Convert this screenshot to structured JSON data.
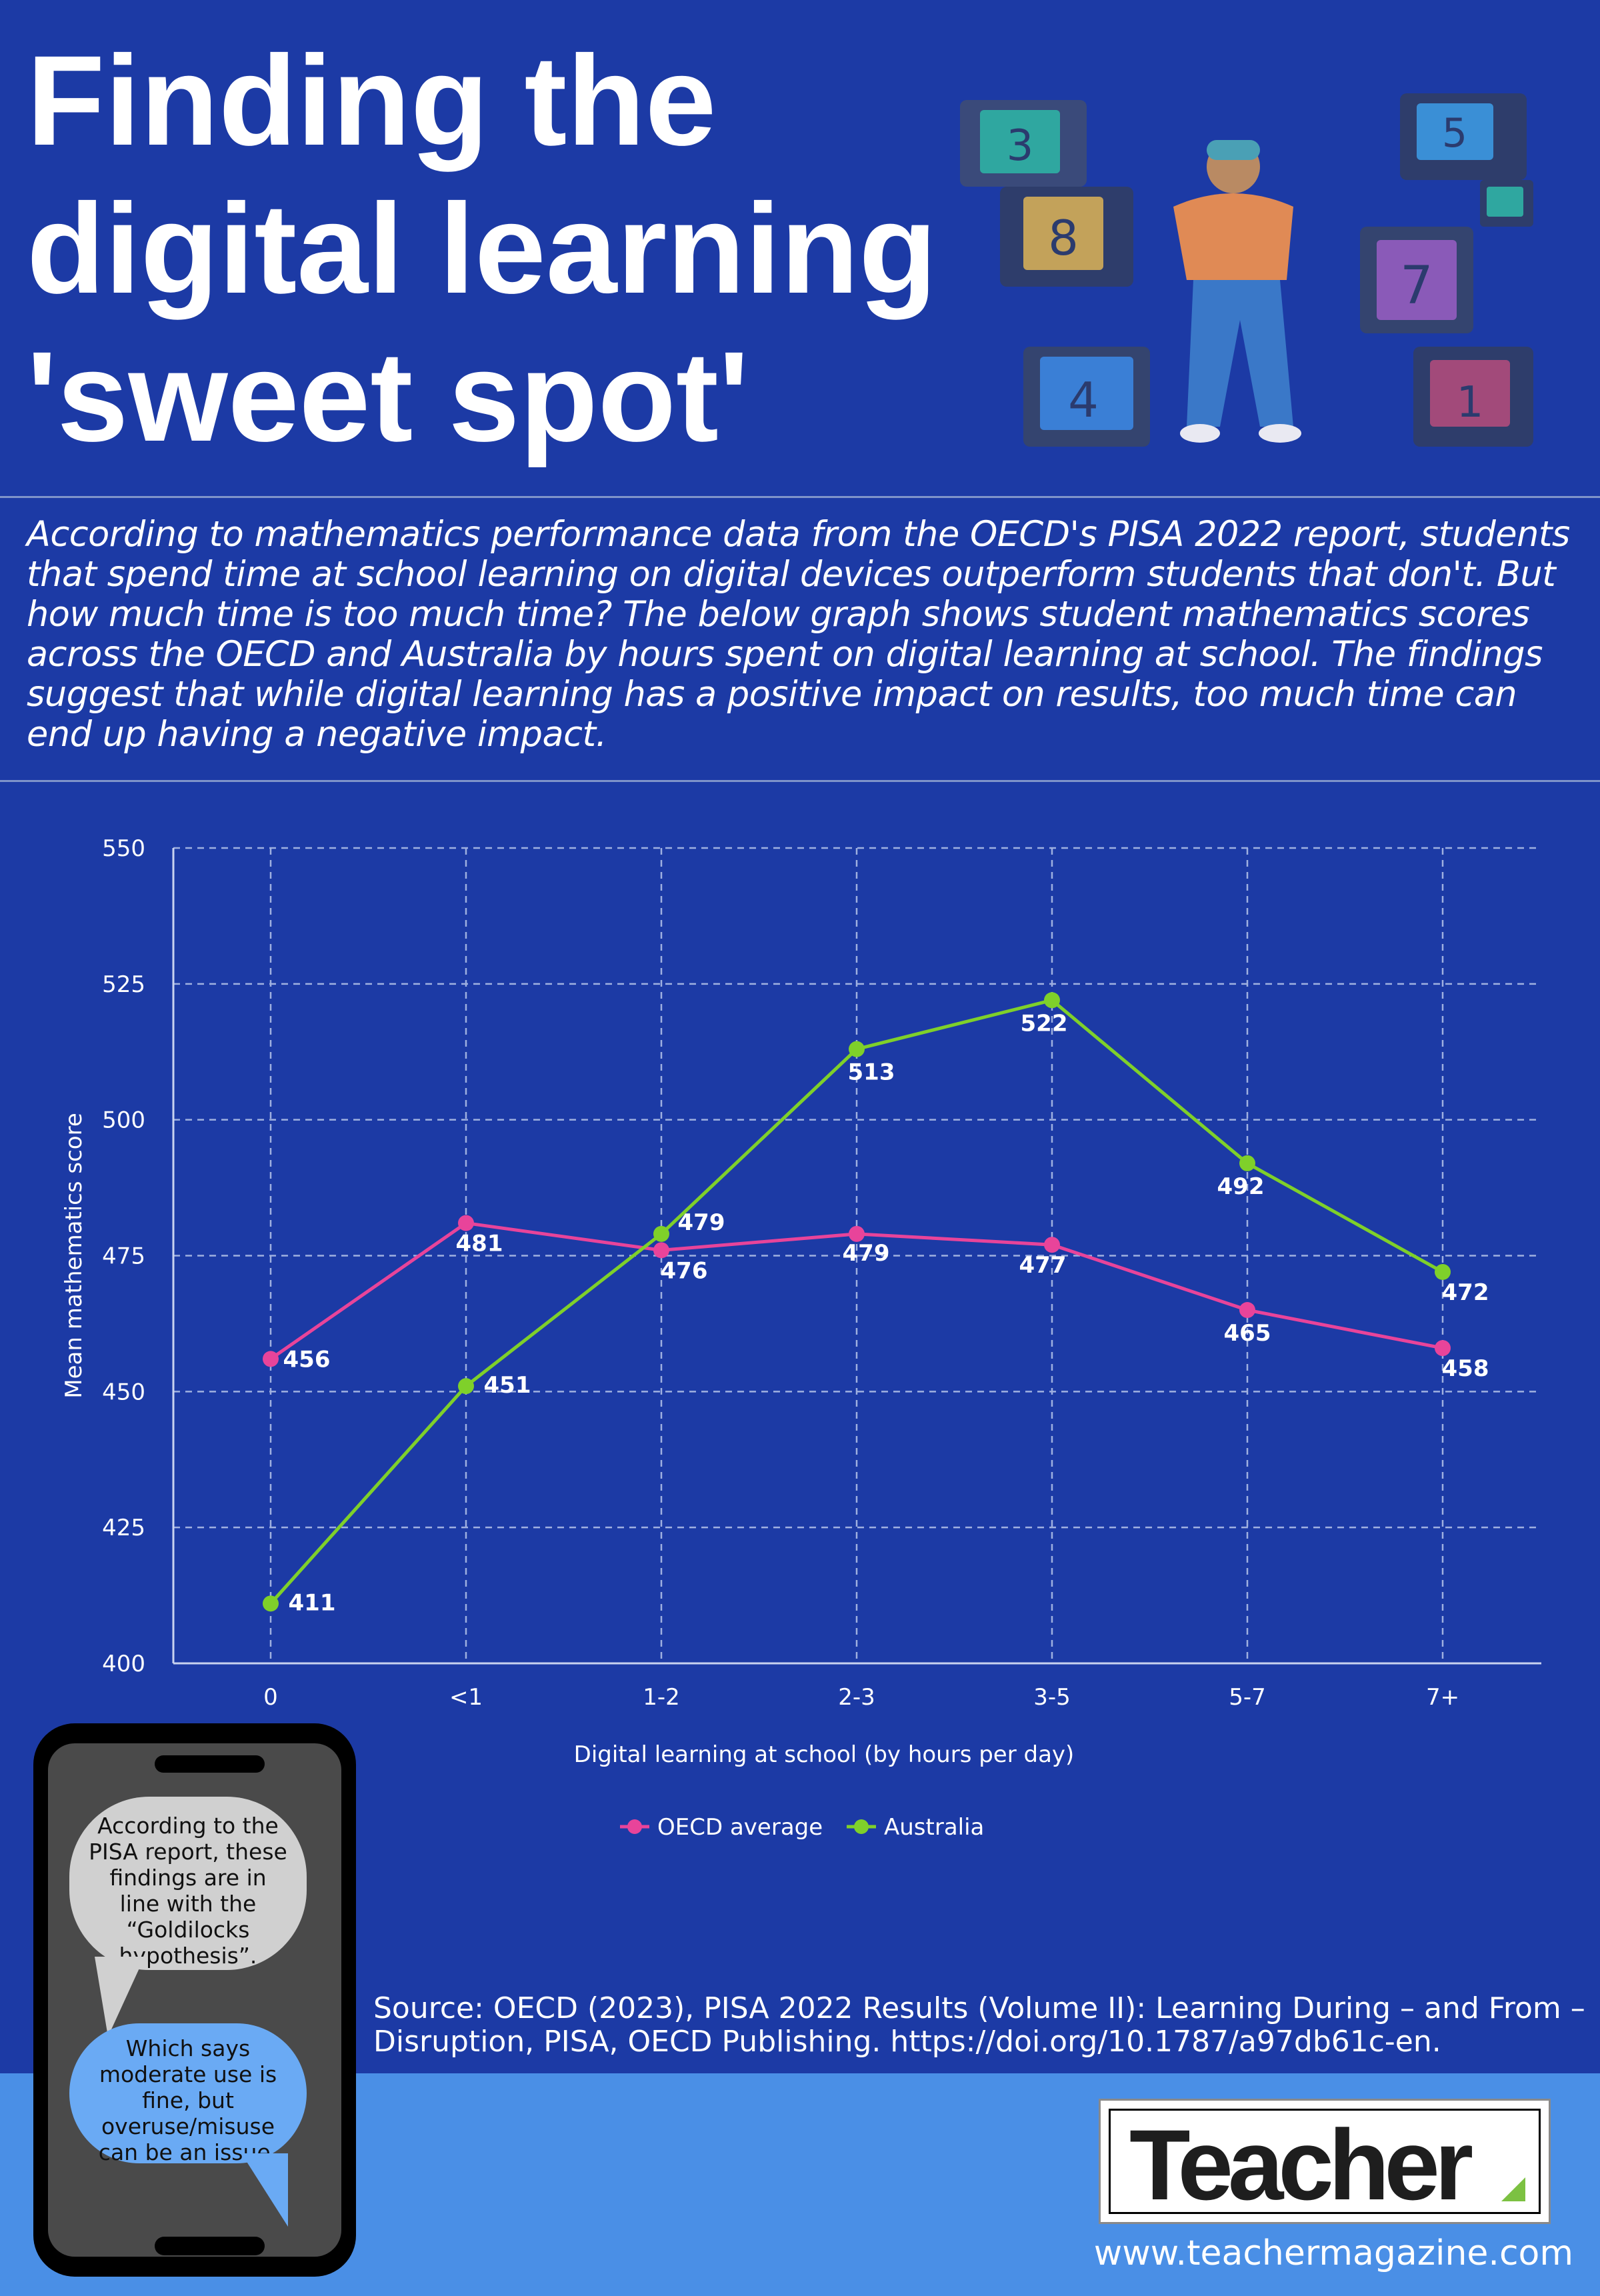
{
  "header": {
    "title_lines": [
      "Finding the",
      "digital learning",
      "'sweet spot'"
    ]
  },
  "intro": "According to mathematics performance data from the OECD's PISA 2022 report, students that spend time at school learning on digital devices outperform students that don't. But how much time is too much time? The below graph shows student mathematics scores across the OECD and Australia by hours spent on digital learning at school. The findings suggest that while digital learning has a positive impact on results, too much time can end up having a negative impact.",
  "hero_numbers": [
    "3",
    "8",
    "4",
    "5",
    "7",
    "1"
  ],
  "chart_data": {
    "type": "line",
    "categories": [
      "0",
      "<1",
      "1-2",
      "2-3",
      "3-5",
      "5-7",
      "7+"
    ],
    "series": [
      {
        "name": "OECD average",
        "color": "#e8449a",
        "values": [
          456,
          481,
          476,
          479,
          477,
          465,
          458
        ]
      },
      {
        "name": "Australia",
        "color": "#7fd02a",
        "values": [
          411,
          451,
          479,
          513,
          522,
          492,
          472
        ]
      }
    ],
    "xlabel": "Digital learning at school (by hours per day)",
    "ylabel": "Mean mathematics score",
    "ylim": [
      400,
      550
    ],
    "yticks": [
      400,
      425,
      450,
      475,
      500,
      525,
      550
    ],
    "grid": true,
    "legend_position": "bottom-center"
  },
  "callout": {
    "bubble1": "According to the PISA report, these findings are in line with the “Goldilocks hypothesis”.",
    "bubble2": "Which says moderate use is fine, but overuse/misuse can be an issue."
  },
  "source": "Source: OECD (2023), PISA 2022 Results (Volume II): Learning During – and From – Disruption, PISA, OECD Publishing. https://doi.org/10.1787/a97db61c-en.",
  "brand": {
    "logo_text": "Teacher",
    "url": "www.teachermagazine.com"
  }
}
